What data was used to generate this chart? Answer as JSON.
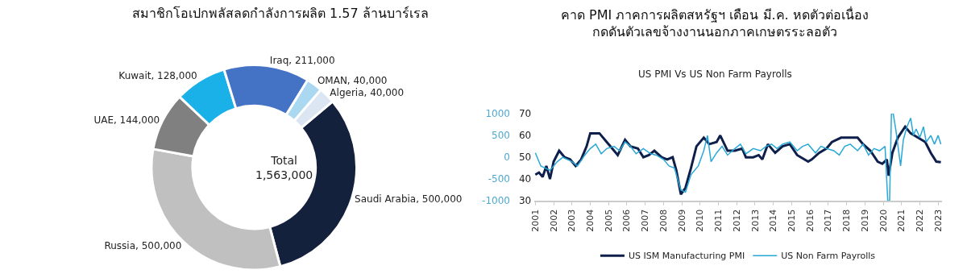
{
  "chart_data": [
    {
      "type": "donut",
      "title": "สมาชิกโอเปกพลัสลดกำลังการผลิต 1.57 ล้านบาร์เรล",
      "categories": [
        "Saudi Arabia",
        "Russia",
        "UAE",
        "Kuwait",
        "Iraq",
        "OMAN",
        "Algeria"
      ],
      "values": [
        500000,
        500000,
        144000,
        128000,
        211000,
        40000,
        40000
      ],
      "colors": [
        "#14213d",
        "#c0c0c0",
        "#808080",
        "#1ab0e8",
        "#4472c4",
        "#a9d8f0",
        "#dce6f2"
      ],
      "value_labels": [
        "500,000",
        "500,000",
        "144,000",
        "128,000",
        "211,000",
        "40,000",
        "40,000"
      ],
      "annotations": [
        "Total\n1,563,000"
      ]
    },
    {
      "type": "line",
      "title": "คาด PMI ภาคการผลิตสหรัฐฯ เดือน มี.ค. หดตัวต่อเนื่อง\nกดดันตัวเลขจ้างงานนอกภาคเกษตรระลอตัว",
      "subtitle": "US PMI Vs US Non Farm Payrolls",
      "series": [
        {
          "name": "US ISM Manufacturing PMI",
          "color": "#0d1f4a",
          "x": [
            2001.0,
            2001.2,
            2001.4,
            2001.6,
            2001.8,
            2002.0,
            2002.3,
            2002.6,
            2002.9,
            2003.2,
            2003.5,
            2003.8,
            2004.0,
            2004.3,
            2004.5,
            2004.9,
            2005.3,
            2005.5,
            2005.9,
            2006.2,
            2006.6,
            2006.9,
            2007.2,
            2007.5,
            2007.9,
            2008.2,
            2008.5,
            2008.7,
            2008.95,
            2009.2,
            2009.5,
            2009.8,
            2010.2,
            2010.5,
            2010.9,
            2011.1,
            2011.5,
            2011.9,
            2012.3,
            2012.5,
            2012.9,
            2013.2,
            2013.4,
            2013.7,
            2014.1,
            2014.5,
            2014.9,
            2015.3,
            2015.9,
            2016.1,
            2016.5,
            2016.9,
            2017.2,
            2017.7,
            2018.1,
            2018.6,
            2018.9,
            2019.3,
            2019.7,
            2019.95,
            2020.2,
            2020.3,
            2020.5,
            2020.8,
            2021.2,
            2021.5,
            2021.9,
            2022.3,
            2022.6,
            2022.9,
            2023.15
          ],
          "values": [
            42,
            43,
            41,
            46,
            40,
            48,
            53,
            50,
            49,
            46,
            49,
            55,
            61,
            61,
            61,
            57,
            53,
            51,
            58,
            55,
            54,
            50,
            51,
            53,
            50,
            49,
            50,
            44,
            33,
            36,
            45,
            55,
            59,
            56,
            57,
            60,
            53,
            53,
            54,
            50,
            50,
            51,
            49,
            56,
            52,
            55,
            56,
            51,
            48,
            49,
            52,
            54,
            57,
            59,
            59,
            59,
            56,
            53,
            48,
            47,
            49,
            41.5,
            52,
            59,
            64,
            61,
            59,
            57,
            52,
            48,
            47.7
          ]
        },
        {
          "name": "US Non Farm Payrolls",
          "color": "#29a8d8",
          "axis": "y2",
          "x": [
            2001.0,
            2001.3,
            2001.8,
            2002.2,
            2002.5,
            2003.0,
            2003.3,
            2003.7,
            2004.0,
            2004.3,
            2004.6,
            2004.9,
            2005.3,
            2005.6,
            2005.9,
            2006.2,
            2006.5,
            2006.9,
            2007.3,
            2007.6,
            2008.0,
            2008.3,
            2008.6,
            2008.95,
            2009.2,
            2009.5,
            2009.9,
            2010.2,
            2010.4,
            2010.6,
            2010.9,
            2011.2,
            2011.5,
            2011.9,
            2012.2,
            2012.5,
            2012.9,
            2013.3,
            2013.6,
            2013.9,
            2014.2,
            2014.5,
            2014.9,
            2015.3,
            2015.6,
            2015.9,
            2016.3,
            2016.6,
            2016.9,
            2017.3,
            2017.6,
            2017.9,
            2018.2,
            2018.6,
            2018.9,
            2019.2,
            2019.5,
            2019.8,
            2020.1,
            2020.25,
            2020.35,
            2020.45,
            2020.55,
            2020.7,
            2020.95,
            2021.1,
            2021.3,
            2021.5,
            2021.65,
            2021.8,
            2022.0,
            2022.2,
            2022.35,
            2022.6,
            2022.8,
            2023.0,
            2023.15
          ],
          "values": [
            100,
            -200,
            -300,
            -100,
            0,
            -100,
            -200,
            50,
            200,
            300,
            80,
            200,
            250,
            150,
            350,
            250,
            80,
            200,
            80,
            50,
            -50,
            -200,
            -250,
            -750,
            -800,
            -400,
            -200,
            150,
            500,
            -100,
            100,
            250,
            50,
            200,
            300,
            80,
            200,
            150,
            250,
            300,
            200,
            300,
            350,
            150,
            250,
            300,
            100,
            250,
            200,
            150,
            50,
            250,
            300,
            150,
            300,
            50,
            200,
            150,
            250,
            -1000,
            -1000,
            1000,
            1000,
            600,
            -200,
            400,
            700,
            900,
            500,
            650,
            450,
            700,
            350,
            500,
            300,
            500,
            300
          ]
        }
      ],
      "xlim": [
        2000.95,
        2023.2
      ],
      "xticks": [
        2001,
        2002,
        2003,
        2004,
        2005,
        2006,
        2007,
        2008,
        2009,
        2010,
        2011,
        2012,
        2013,
        2014,
        2015,
        2016,
        2017,
        2018,
        2019,
        2020,
        2021,
        2022,
        2023
      ],
      "ylim": [
        30,
        70
      ],
      "yticks": [
        30,
        40,
        50,
        60,
        70
      ],
      "y2lim": [
        -1000,
        1000
      ],
      "y2ticks": [
        -1000,
        -500,
        0,
        500,
        1000
      ],
      "legend": "bottom"
    }
  ]
}
